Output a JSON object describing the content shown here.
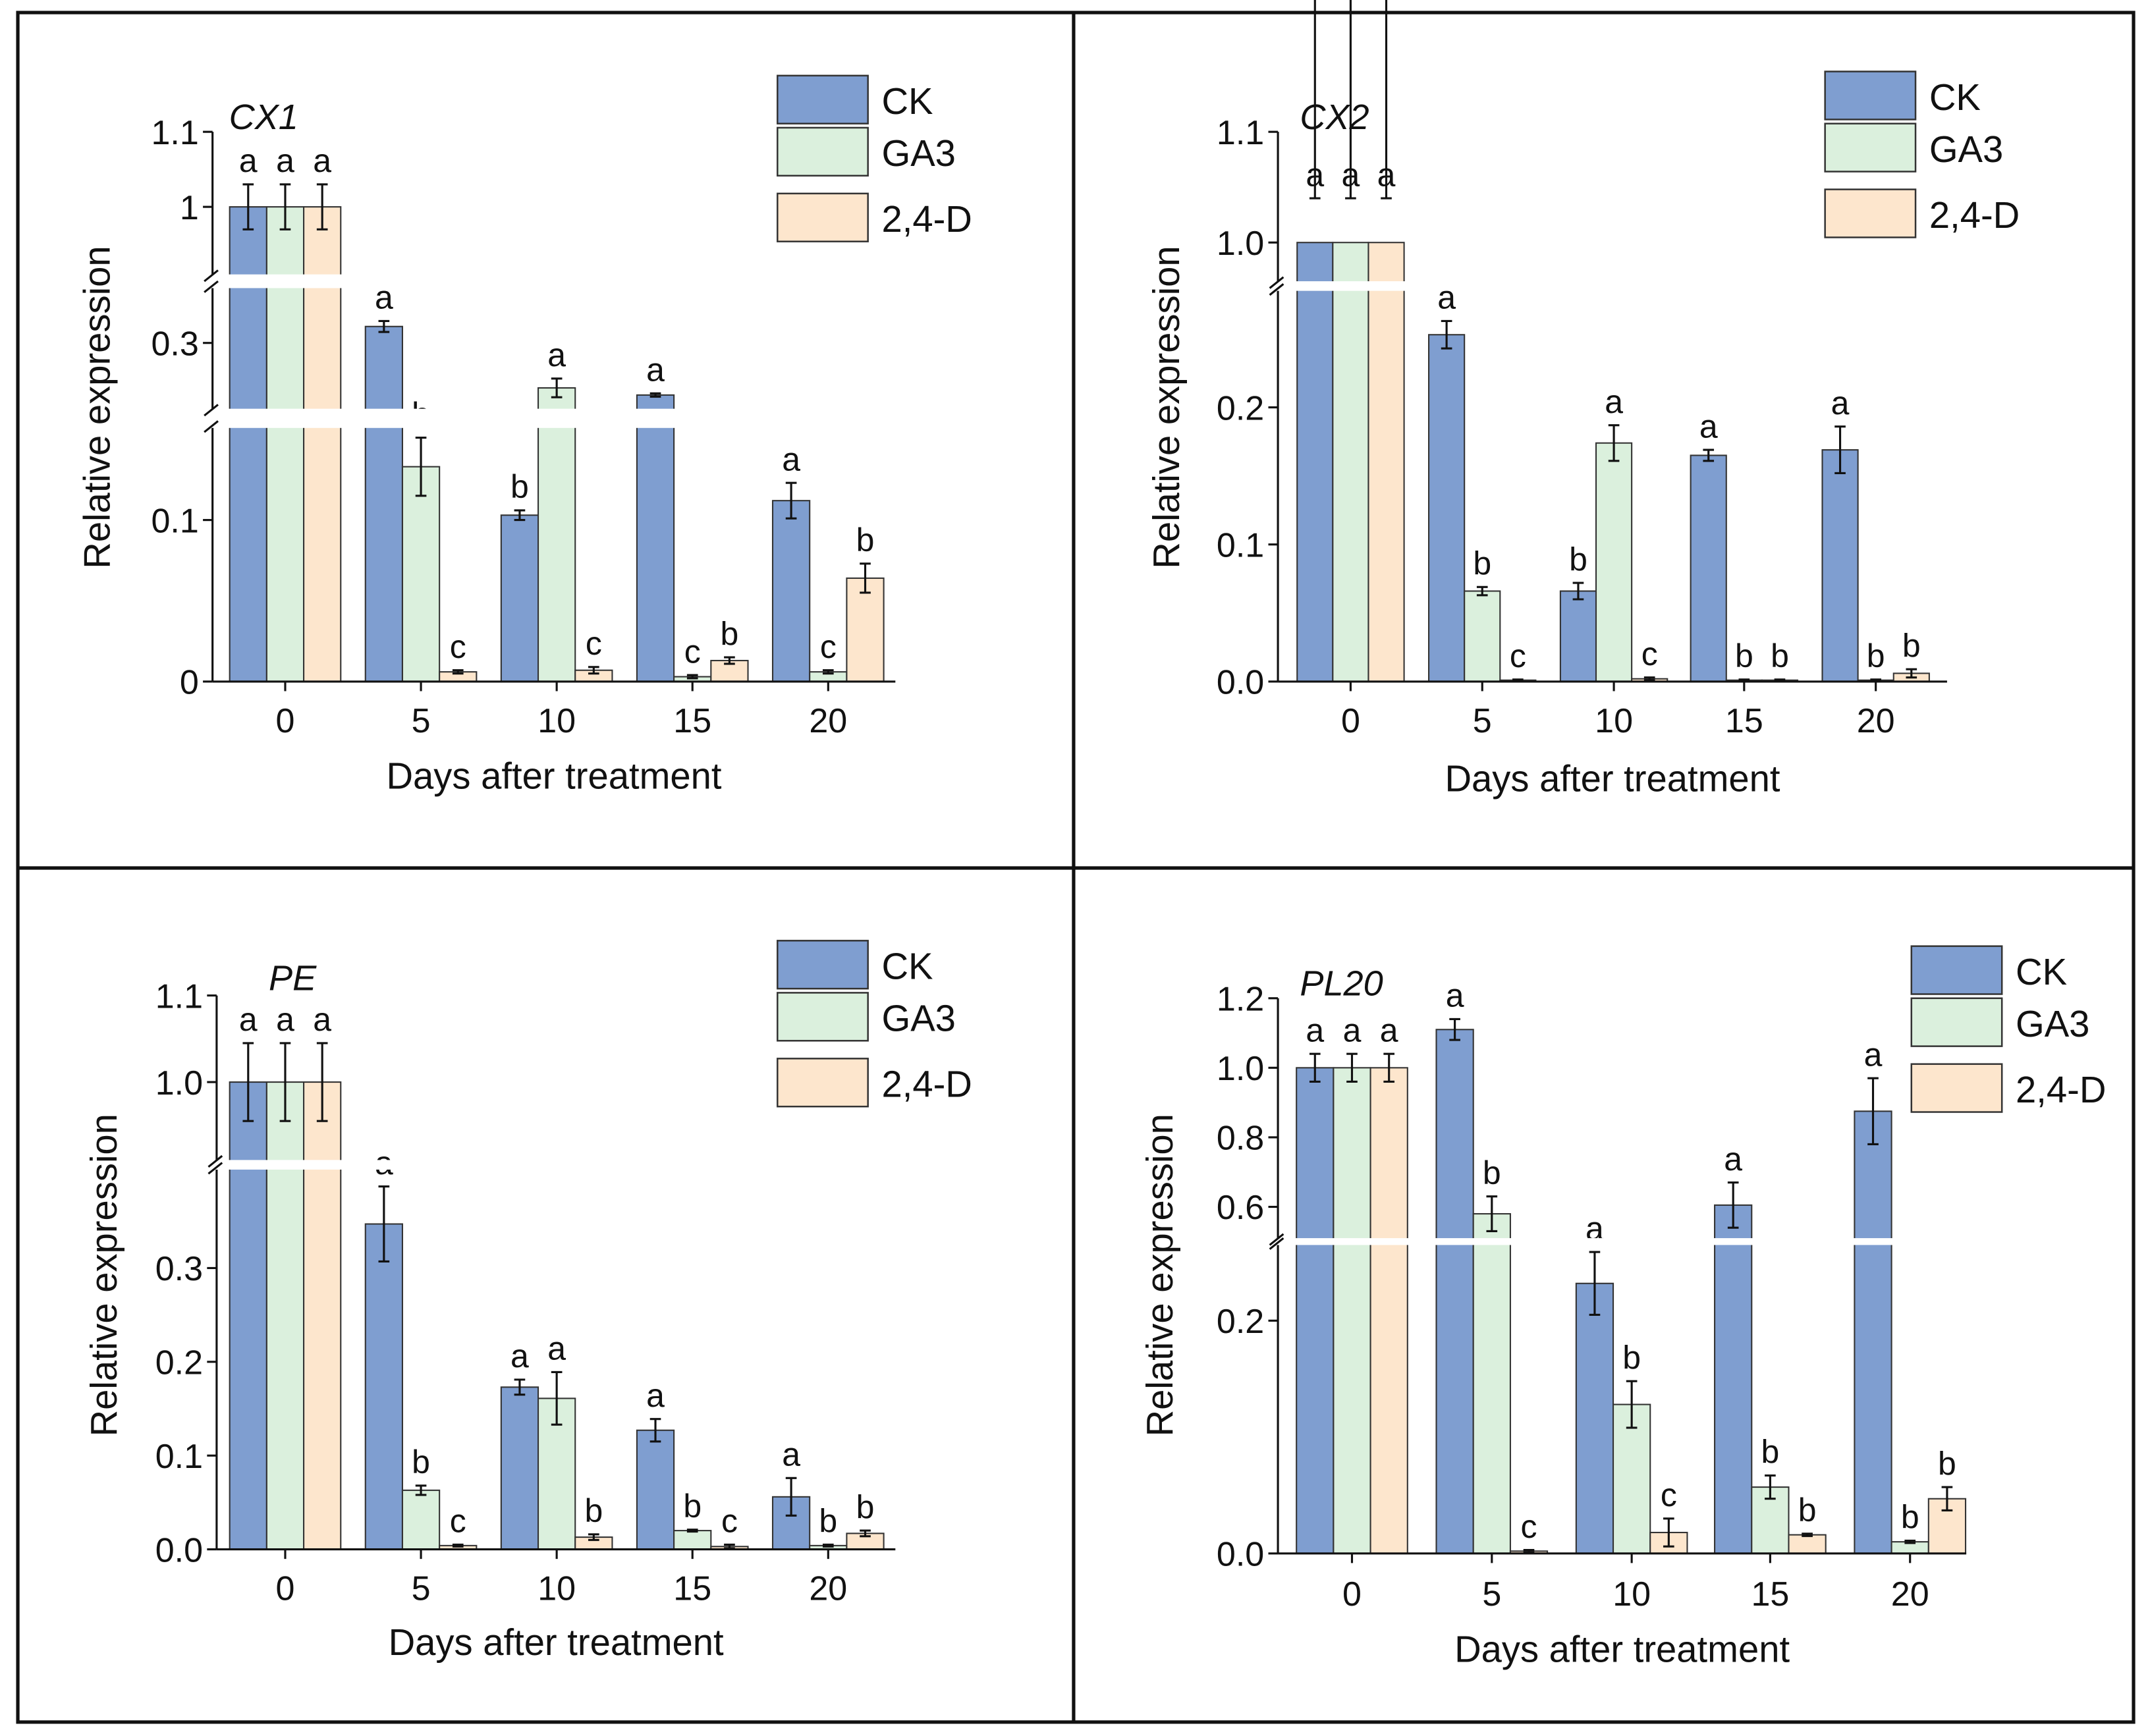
{
  "legend": [
    "CK",
    "GA3",
    "2,4-D"
  ],
  "colors": {
    "CK": "#7f9ed0",
    "GA3": "#dbf0dd",
    "2,4-D": "#fde6cd",
    "edge": "#333333"
  },
  "chart_data": [
    {
      "type": "bar",
      "title": "CX1",
      "xlabel": "Days after treatment",
      "ylabel": "Relative expression",
      "categories": [
        "0",
        "5",
        "10",
        "15",
        "20"
      ],
      "y_segments": [
        [
          0,
          0.157
        ],
        [
          0.18,
          0.4
        ],
        [
          0.91,
          1.1
        ]
      ],
      "yticks": [
        {
          "v": 0,
          "label": "0"
        },
        {
          "v": 0.1,
          "label": "0.1"
        },
        {
          "v": 0.3,
          "label": "0.3"
        },
        {
          "v": 1,
          "label": "1"
        },
        {
          "v": 1.1,
          "label": "1.1"
        }
      ],
      "series": [
        {
          "name": "CK",
          "values": [
            1.0,
            0.33,
            0.103,
            0.205,
            0.112
          ],
          "errors": [
            0.03,
            0.01,
            0.003,
            0.003,
            0.011
          ],
          "letters": [
            "a",
            "a",
            "b",
            "a",
            "a"
          ]
        },
        {
          "name": "GA3",
          "values": [
            1.0,
            0.133,
            0.218,
            0.003,
            0.006
          ],
          "errors": [
            0.03,
            0.018,
            0.017,
            0.001,
            0.001
          ],
          "letters": [
            "a",
            "b",
            "a",
            "c",
            "c"
          ]
        },
        {
          "name": "2,4-D",
          "values": [
            1.0,
            0.006,
            0.007,
            0.013,
            0.064
          ],
          "errors": [
            0.03,
            0.001,
            0.002,
            0.002,
            0.009
          ],
          "letters": [
            "a",
            "c",
            "c",
            "b",
            "b"
          ]
        }
      ]
    },
    {
      "type": "bar",
      "title": "CX2",
      "xlabel": "Days after treatment",
      "ylabel": "Relative expression",
      "categories": [
        "0",
        "5",
        "10",
        "15",
        "20"
      ],
      "y_segments": [
        [
          0,
          0.285
        ],
        [
          0.965,
          1.1
        ]
      ],
      "yticks": [
        {
          "v": 0,
          "label": "0.0"
        },
        {
          "v": 0.1,
          "label": "0.1"
        },
        {
          "v": 0.2,
          "label": "0.2"
        },
        {
          "v": 1.0,
          "label": "1.0"
        },
        {
          "v": 1.1,
          "label": "1.1"
        }
      ],
      "series": [
        {
          "name": "CK",
          "values": [
            1.0,
            0.253,
            0.066,
            0.165,
            0.169
          ],
          "errors": [
            0.04,
            0.01,
            0.006,
            0.004,
            0.017
          ],
          "letters": [
            "a",
            "a",
            "b",
            "a",
            "a"
          ]
        },
        {
          "name": "GA3",
          "values": [
            1.0,
            0.066,
            0.174,
            0.001,
            0.001
          ],
          "errors": [
            0.04,
            0.003,
            0.013,
            0.0005,
            0.0005
          ],
          "letters": [
            "a",
            "b",
            "a",
            "b",
            "b"
          ]
        },
        {
          "name": "2,4-D",
          "values": [
            1.0,
            0.001,
            0.002,
            0.001,
            0.006
          ],
          "errors": [
            0.04,
            0.0005,
            0.001,
            0.0005,
            0.003
          ],
          "letters": [
            "a",
            "c",
            "c",
            "b",
            "b"
          ]
        }
      ]
    },
    {
      "type": "bar",
      "title": "PE",
      "xlabel": "Days after treatment",
      "ylabel": "Relative expression",
      "categories": [
        "0",
        "5",
        "10",
        "15",
        "20"
      ],
      "y_segments": [
        [
          0,
          0.405
        ],
        [
          0.91,
          1.1
        ]
      ],
      "yticks": [
        {
          "v": 0,
          "label": "0.0"
        },
        {
          "v": 0.1,
          "label": "0.1"
        },
        {
          "v": 0.2,
          "label": "0.2"
        },
        {
          "v": 0.3,
          "label": "0.3"
        },
        {
          "v": 1.0,
          "label": "1.0"
        },
        {
          "v": 1.1,
          "label": "1.1"
        }
      ],
      "series": [
        {
          "name": "CK",
          "values": [
            1.0,
            0.347,
            0.173,
            0.127,
            0.056
          ],
          "errors": [
            0.045,
            0.04,
            0.008,
            0.012,
            0.02
          ],
          "letters": [
            "a",
            "a",
            "a",
            "a",
            "a"
          ]
        },
        {
          "name": "GA3",
          "values": [
            1.0,
            0.063,
            0.161,
            0.02,
            0.004
          ],
          "errors": [
            0.045,
            0.005,
            0.028,
            0.001,
            0.001
          ],
          "letters": [
            "a",
            "b",
            "a",
            "b",
            "b"
          ]
        },
        {
          "name": "2,4-D",
          "values": [
            1.0,
            0.004,
            0.013,
            0.003,
            0.017
          ],
          "errors": [
            0.045,
            0.001,
            0.003,
            0.002,
            0.003
          ],
          "letters": [
            "a",
            "c",
            "b",
            "c",
            "b"
          ]
        }
      ]
    },
    {
      "type": "bar",
      "title": "PL20",
      "xlabel": "Days after treatment",
      "ylabel": "Relative expression",
      "categories": [
        "0",
        "5",
        "10",
        "15",
        "20"
      ],
      "y_segments": [
        [
          0,
          0.265
        ],
        [
          0.51,
          1.2
        ]
      ],
      "yticks": [
        {
          "v": 0,
          "label": "0.0"
        },
        {
          "v": 0.2,
          "label": "0.2"
        },
        {
          "v": 0.6,
          "label": "0.6"
        },
        {
          "v": 0.8,
          "label": "0.8"
        },
        {
          "v": 1.0,
          "label": "1.0"
        },
        {
          "v": 1.2,
          "label": "1.2"
        }
      ],
      "series": [
        {
          "name": "CK",
          "values": [
            1.0,
            1.11,
            0.232,
            0.605,
            0.875
          ],
          "errors": [
            0.04,
            0.03,
            0.027,
            0.065,
            0.095
          ],
          "letters": [
            "a",
            "a",
            "a",
            "a",
            "a"
          ]
        },
        {
          "name": "GA3",
          "values": [
            1.0,
            0.58,
            0.128,
            0.057,
            0.01
          ],
          "errors": [
            0.04,
            0.05,
            0.02,
            0.01,
            0.001
          ],
          "letters": [
            "a",
            "b",
            "b",
            "b",
            "b"
          ]
        },
        {
          "name": "2,4-D",
          "values": [
            1.0,
            0.002,
            0.018,
            0.016,
            0.047
          ],
          "errors": [
            0.04,
            0.001,
            0.012,
            0.001,
            0.01
          ],
          "letters": [
            "a",
            "c",
            "c",
            "b",
            "b"
          ]
        }
      ]
    }
  ]
}
